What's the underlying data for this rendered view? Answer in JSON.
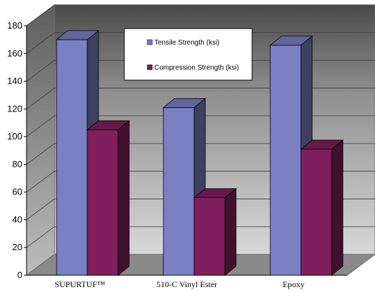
{
  "chart_data": {
    "type": "bar",
    "title": "",
    "xlabel": "",
    "ylabel": "",
    "categories": [
      "SUPURTUF™",
      "510-C Vinyl Ester",
      "Epoxy"
    ],
    "series": [
      {
        "name": "Tensile Strength (ksi)",
        "values": [
          170,
          121,
          166
        ],
        "color": "#7b7fc4"
      },
      {
        "name": "Compression Strength (ksi)",
        "values": [
          105,
          56,
          91
        ],
        "color": "#7f1f5e"
      }
    ],
    "ylim": [
      0,
      180
    ],
    "yticks": [
      0,
      20,
      40,
      60,
      80,
      100,
      120,
      140,
      160,
      180
    ],
    "grid": true,
    "legend_position": "top-center",
    "style": "3d-column"
  }
}
